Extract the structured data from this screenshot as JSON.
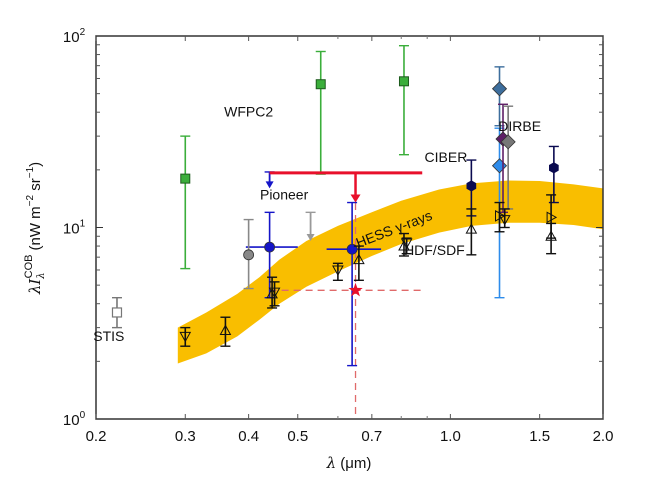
{
  "chart_data": {
    "type": "scatter",
    "xscale": "log",
    "yscale": "log",
    "xlim": [
      0.2,
      2.0
    ],
    "ylim": [
      1,
      100
    ],
    "xlabel": "λ (μm)",
    "ylabel": "λI_λ^COB (nW m^-2 sr^-1)",
    "ylabel_parts": {
      "lambda": "λ",
      "I": "I",
      "sub": "λ",
      "sup": "COB",
      "unit_open": "(nW m",
      "unit_exp1": "−2",
      "unit_mid": " sr",
      "unit_exp2": "−1",
      "unit_close": ")"
    },
    "xlabel_parts": {
      "lambda": "λ",
      "unit": " (μm)"
    },
    "xticks": [
      {
        "value": 0.2,
        "label": "0.2"
      },
      {
        "value": 0.3,
        "label": "0.3"
      },
      {
        "value": 0.4,
        "label": "0.4"
      },
      {
        "value": 0.5,
        "label": "0.5"
      },
      {
        "value": 0.7,
        "label": "0.7"
      },
      {
        "value": 1.0,
        "label": "1.0"
      },
      {
        "value": 1.5,
        "label": "1.5"
      },
      {
        "value": 2.0,
        "label": "2.0"
      }
    ],
    "xminor": [
      0.6,
      0.8,
      0.9
    ],
    "yticks": [
      {
        "value": 1,
        "base": "10",
        "exp": "0"
      },
      {
        "value": 10,
        "base": "10",
        "exp": "1"
      },
      {
        "value": 100,
        "base": "10",
        "exp": "2"
      }
    ],
    "band": {
      "name": "HESS γ-rays",
      "color": "#F9BE00",
      "label": "HESS γ-rays",
      "x": [
        0.29,
        0.33,
        0.38,
        0.42,
        0.46,
        0.52,
        0.6,
        0.7,
        0.8,
        0.95,
        1.1,
        1.3,
        1.5,
        1.75,
        2.0
      ],
      "upper": [
        3.0,
        3.6,
        4.5,
        5.5,
        6.8,
        8.5,
        10.2,
        12.0,
        13.8,
        15.8,
        17.0,
        17.6,
        17.5,
        16.8,
        16.0
      ],
      "lower": [
        1.95,
        2.2,
        2.7,
        3.3,
        4.0,
        4.9,
        5.9,
        7.1,
        8.2,
        9.4,
        10.2,
        10.6,
        10.6,
        10.3,
        9.8
      ]
    },
    "labels": [
      {
        "text": "WFPC2",
        "x": 0.4,
        "y": 38
      },
      {
        "text": "Pioneer",
        "x": 0.47,
        "y": 14
      },
      {
        "text": "CIBER",
        "x": 0.98,
        "y": 22
      },
      {
        "text": "DIRBE",
        "x": 1.37,
        "y": 32
      },
      {
        "text": "HDF/SDF",
        "x": 0.93,
        "y": 7.2
      },
      {
        "text": "STIS",
        "x": 0.212,
        "y": 2.55
      }
    ],
    "series": [
      {
        "name": "STIS",
        "color": "#777777",
        "marker": "square-open",
        "points": [
          {
            "x": 0.22,
            "y": 3.6,
            "ylo": 3.0,
            "yhi": 4.3
          }
        ]
      },
      {
        "name": "WFPC2",
        "color": "#3BAE3B",
        "marker": "square",
        "points": [
          {
            "x": 0.3,
            "y": 18,
            "ylo": 6.1,
            "yhi": 30
          },
          {
            "x": 0.555,
            "y": 56,
            "ylo": 19,
            "yhi": 83
          },
          {
            "x": 0.81,
            "y": 58,
            "ylo": 24,
            "yhi": 89
          }
        ]
      },
      {
        "name": "Pioneer",
        "color": "#1515C8",
        "marker": "circle",
        "points": [
          {
            "x": 0.44,
            "y": 7.9,
            "ylo": 4.3,
            "yhi": 12,
            "xlo": 0.395,
            "xhi": 0.5
          },
          {
            "x": 0.64,
            "y": 7.7,
            "ylo": 1.9,
            "yhi": 13.5,
            "xlo": 0.57,
            "xhi": 0.73
          }
        ]
      },
      {
        "name": "Pioneer upper limit",
        "color": "#1515C8",
        "marker": "arrow-down",
        "points": [
          {
            "x": 0.44,
            "y": 19.5,
            "limit": 16
          }
        ]
      },
      {
        "name": "gray circle",
        "color": "#888888",
        "marker": "circle",
        "points": [
          {
            "x": 0.4,
            "y": 7.2,
            "ylo": 4.8,
            "yhi": 11
          }
        ]
      },
      {
        "name": "gray upper limit",
        "color": "#999999",
        "marker": "arrow-down",
        "points": [
          {
            "x": 0.53,
            "y": 12,
            "limit": 8.5
          }
        ]
      },
      {
        "name": "CIBER",
        "color": "#0A0A50",
        "marker": "hexagon",
        "points": [
          {
            "x": 1.1,
            "y": 16.5,
            "ylo": 11.5,
            "yhi": 22.5
          },
          {
            "x": 1.6,
            "y": 20.5,
            "ylo": 13.5,
            "yhi": 26.5
          }
        ]
      },
      {
        "name": "DIRBE",
        "color": "#3A6FA8",
        "marker": "diamond",
        "points": [
          {
            "x": 1.25,
            "y": 53,
            "ylo": 34,
            "yhi": 69,
            "color": "#3D6E9D"
          },
          {
            "x": 1.25,
            "y": 21,
            "ylo": 4.3,
            "yhi": 33,
            "color": "#2E8CEB"
          },
          {
            "x": 1.27,
            "y": 29,
            "ylo": 12,
            "yhi": 44,
            "color": "#5E1E66"
          },
          {
            "x": 1.3,
            "y": 28,
            "ylo": 12.5,
            "yhi": 43,
            "color": "#777777"
          }
        ]
      },
      {
        "name": "HDF/SDF galaxy counts",
        "color": "#111111",
        "marker": "triangle-open",
        "points": [
          {
            "x": 0.3,
            "y": 2.7,
            "ylo": 2.4,
            "yhi": 3.0,
            "dir": "down"
          },
          {
            "x": 0.36,
            "y": 2.9,
            "ylo": 2.4,
            "yhi": 3.4,
            "dir": "up"
          },
          {
            "x": 0.445,
            "y": 4.5,
            "ylo": 3.8,
            "yhi": 5.5,
            "dir": "up"
          },
          {
            "x": 0.45,
            "y": 4.6,
            "ylo": 3.9,
            "yhi": 5.2,
            "dir": "down"
          },
          {
            "x": 0.6,
            "y": 6.0,
            "ylo": 5.3,
            "yhi": 6.5,
            "dir": "down"
          },
          {
            "x": 0.66,
            "y": 6.8,
            "ylo": 5.3,
            "yhi": 8.0,
            "dir": "up"
          },
          {
            "x": 0.81,
            "y": 8.0,
            "ylo": 7.1,
            "yhi": 9.3,
            "dir": "up"
          },
          {
            "x": 0.82,
            "y": 8.3,
            "ylo": 7.3,
            "yhi": 8.8,
            "dir": "down"
          },
          {
            "x": 1.1,
            "y": 9.8,
            "ylo": 7.2,
            "yhi": 12.5,
            "dir": "up"
          },
          {
            "x": 1.25,
            "y": 11.5,
            "ylo": 9.5,
            "yhi": 13.5,
            "dir": "right"
          },
          {
            "x": 1.28,
            "y": 11.0,
            "ylo": 10.0,
            "yhi": 12.5,
            "dir": "down"
          },
          {
            "x": 1.58,
            "y": 11.3,
            "ylo": 8.8,
            "yhi": 14.8,
            "dir": "right"
          },
          {
            "x": 1.58,
            "y": 9.0,
            "ylo": 7.3,
            "yhi": 10.5,
            "dir": "up"
          }
        ]
      },
      {
        "name": "This work",
        "color": "#E8102B",
        "marker": "star",
        "points": [
          {
            "x": 0.65,
            "y": 4.7
          }
        ],
        "upper_limit": {
          "y": 19.3,
          "xmin": 0.44,
          "xmax": 0.88,
          "arrow_x": 0.65,
          "arrow_to": 13.5
        },
        "dashed_color": "#E06A6A",
        "dashed_x": [
          0.44,
          0.88
        ]
      }
    ]
  }
}
